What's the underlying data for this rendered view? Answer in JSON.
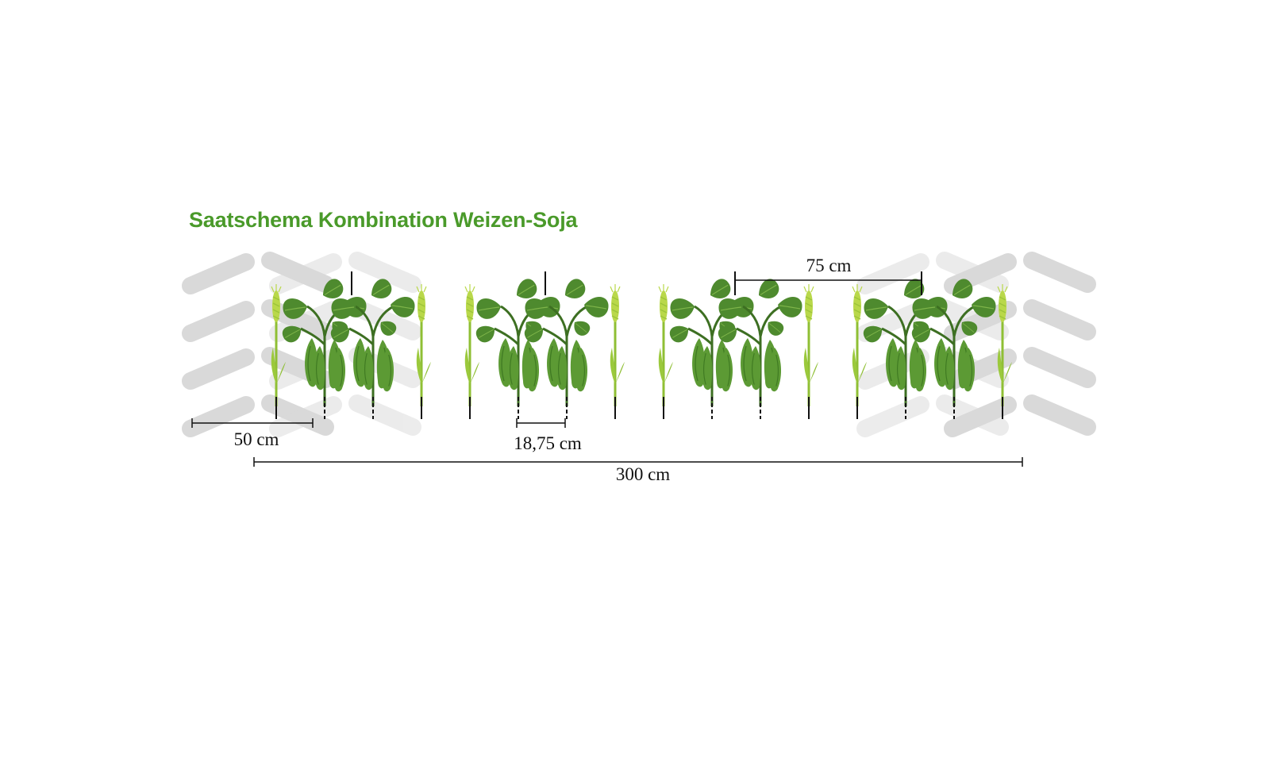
{
  "title": "Saatschema Kombination Weizen-Soja",
  "colors": {
    "title": "#4a9a2a",
    "tire_track": "#d9d9d9",
    "wheat": "#b9d84a",
    "soy_leaf": "#4e8a2e",
    "soy_pod": "#5c9a34",
    "row_marker": "#111111"
  },
  "rows": [
    "wheat",
    "soy",
    "soy",
    "wheat",
    "wheat",
    "soy",
    "soy",
    "wheat",
    "wheat",
    "soy",
    "soy",
    "wheat",
    "wheat",
    "soy",
    "soy",
    "wheat"
  ],
  "dimensions": {
    "edge": "50 cm",
    "row_spacing": "18,75 cm",
    "soy_band": "75 cm",
    "total": "300 cm"
  }
}
